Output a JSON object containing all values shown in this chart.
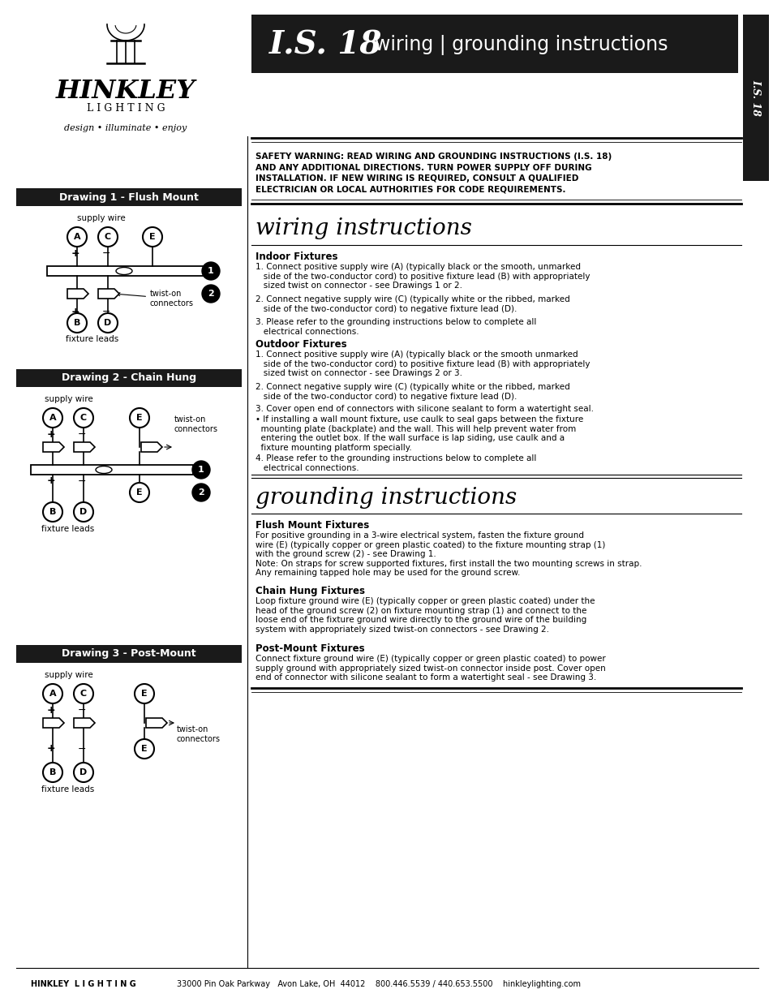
{
  "title_is": "I.S. 18",
  "title_subtitle": "wiring | grounding instructions",
  "title_rotated": "I.S. 18",
  "company": "HINKLEY",
  "company_sub": "LIGHTING",
  "tagline": "design • illuminate • enjoy",
  "safety_warning_lines": [
    "SAFETY WARNING: READ WIRING AND GROUNDING INSTRUCTIONS (I.S. 18)",
    "AND ANY ADDITIONAL DIRECTIONS. TURN POWER SUPPLY OFF DURING",
    "INSTALLATION. IF NEW WIRING IS REQUIRED, CONSULT A QUALIFIED",
    "ELECTRICIAN OR LOCAL AUTHORITIES FOR CODE REQUIREMENTS."
  ],
  "wiring_title": "wiring instructions",
  "indoor_title": "Indoor Fixtures",
  "indoor_text": [
    "1. Connect positive supply wire (A) (typically black or the smooth, unmarked\n   side of the two-conductor cord) to positive fixture lead (B) with appropriately\n   sized twist on connector - see Drawings 1 or 2.",
    "2. Connect negative supply wire (C) (typically white or the ribbed, marked\n   side of the two-conductor cord) to negative fixture lead (D).",
    "3. Please refer to the grounding instructions below to complete all\n   electrical connections."
  ],
  "outdoor_title": "Outdoor Fixtures",
  "outdoor_text": [
    "1. Connect positive supply wire (A) (typically black or the smooth unmarked\n   side of the two-conductor cord) to positive fixture lead (B) with appropriately\n   sized twist on connector - see Drawings 2 or 3.",
    "2. Connect negative supply wire (C) (typically white or the ribbed, marked\n   side of the two-conductor cord) to negative fixture lead (D).",
    "3. Cover open end of connectors with silicone sealant to form a watertight seal.",
    "• If installing a wall mount fixture, use caulk to seal gaps between the fixture\n  mounting plate (backplate) and the wall. This will help prevent water from\n  entering the outlet box. If the wall surface is lap siding, use caulk and a\n  fixture mounting platform specially.",
    "4. Please refer to the grounding instructions below to complete all\n   electrical connections."
  ],
  "grounding_title": "grounding instructions",
  "flush_title": "Flush Mount Fixtures",
  "flush_text": "For positive grounding in a 3-wire electrical system, fasten the fixture ground\nwire (E) (typically copper or green plastic coated) to the fixture mounting strap (1)\nwith the ground screw (2) - see Drawing 1.\nNote: On straps for screw supported fixtures, first install the two mounting screws in strap.\nAny remaining tapped hole may be used for the ground screw.",
  "chain_title": "Chain Hung Fixtures",
  "chain_text": "Loop fixture ground wire (E) (typically copper or green plastic coated) under the\nhead of the ground screw (2) on fixture mounting strap (1) and connect to the\nloose end of the fixture ground wire directly to the ground wire of the building\nsystem with appropriately sized twist-on connectors - see Drawing 2.",
  "post_title": "Post-Mount Fixtures",
  "post_text": "Connect fixture ground wire (E) (typically copper or green plastic coated) to power\nsupply ground with appropriately sized twist-on connector inside post. Cover open\nend of connector with silicone sealant to form a watertight seal - see Drawing 3.",
  "footer_left": "HINKLEY  L I G H T I N G",
  "footer_right": "33000 Pin Oak Parkway   Avon Lake, OH  44012    800.446.5539 / 440.653.5500    hinkleylighting.com",
  "drawing1_title": "Drawing 1 - Flush Mount",
  "drawing2_title": "Drawing 2 - Chain Hung",
  "drawing3_title": "Drawing 3 - Post-Mount",
  "bg_color": "#ffffff",
  "black": "#000000",
  "header_bg": "#1a1a1a"
}
